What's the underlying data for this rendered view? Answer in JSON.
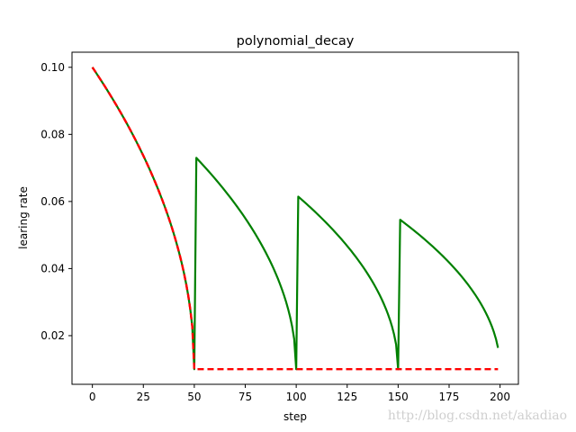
{
  "chart_data": {
    "type": "line",
    "title": "polynomial_decay",
    "xlabel": "step",
    "ylabel": "learing rate",
    "xlim": [
      -10,
      209
    ],
    "ylim": [
      0.0055,
      0.1045
    ],
    "xticks": [
      0,
      25,
      50,
      75,
      100,
      125,
      150,
      175,
      200
    ],
    "yticks": [
      0.02,
      0.04,
      0.06,
      0.08,
      0.1
    ],
    "ytick_labels": [
      "0.02",
      "0.04",
      "0.06",
      "0.08",
      "0.10"
    ],
    "grid": false,
    "legend": "none",
    "decay": {
      "learning_rate": 0.1,
      "end_learning_rate": 0.01,
      "decay_steps": 50,
      "power": 0.5,
      "steps": [
        0,
        199
      ]
    },
    "series": [
      {
        "color": "#008000",
        "style": "solid",
        "cycle": true
      },
      {
        "color": "#ff0000",
        "style": "dashed",
        "cycle": false
      }
    ]
  },
  "watermark": "http://blog.csdn.net/akadiao"
}
